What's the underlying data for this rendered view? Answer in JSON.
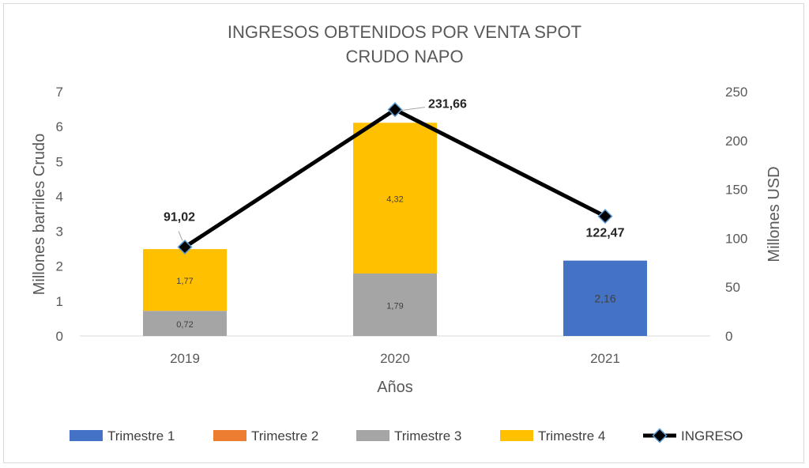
{
  "chart_data": {
    "type": "bar",
    "title": [
      "INGRESOS OBTENIDOS POR VENTA SPOT",
      "CRUDO NAPO"
    ],
    "xlabel": "Años",
    "ylabel": "Millones barriles Crudo",
    "y2label": "Millones USD",
    "categories": [
      "2019",
      "2020",
      "2021"
    ],
    "ylim": [
      0,
      7
    ],
    "y2lim": [
      0,
      250
    ],
    "yticks": [
      "0",
      "1",
      "2",
      "3",
      "4",
      "5",
      "6",
      "7"
    ],
    "y2ticks": [
      "0",
      "50",
      "100",
      "150",
      "200",
      "250"
    ],
    "stacked": true,
    "series": [
      {
        "name": "Trimestre 1",
        "color": "#4472c4",
        "values": [
          0,
          0,
          2.16
        ],
        "labels": [
          "",
          "",
          "2,16"
        ]
      },
      {
        "name": "Trimestre 2",
        "color": "#ed7d31",
        "values": [
          0,
          0,
          0
        ],
        "labels": [
          "",
          "",
          ""
        ]
      },
      {
        "name": "Trimestre 3",
        "color": "#a5a5a5",
        "values": [
          0.72,
          1.79,
          0
        ],
        "labels": [
          "0,72",
          "1,79",
          ""
        ]
      },
      {
        "name": "Trimestre 4",
        "color": "#ffc000",
        "values": [
          1.77,
          4.32,
          0
        ],
        "labels": [
          "1,77",
          "4,32",
          ""
        ]
      }
    ],
    "line": {
      "name": "INGRESO",
      "axis": "secondary",
      "color": "#000000",
      "marker_color": "#5b9bd5",
      "values": [
        91.02,
        231.66,
        122.47
      ],
      "labels": [
        "91,02",
        "231,66",
        "122,47"
      ]
    },
    "grid": false,
    "legend": "bottom"
  }
}
